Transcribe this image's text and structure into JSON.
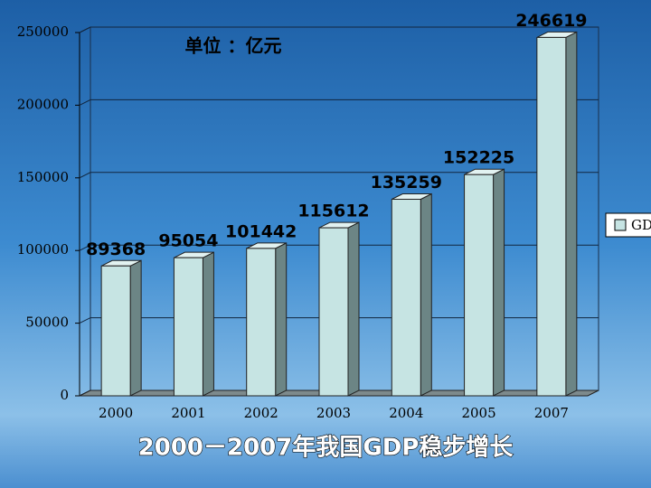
{
  "chart_data": {
    "type": "bar",
    "title": "2000－2007年我国GDP稳步增长",
    "annotation": "单位 ：亿元",
    "categories": [
      "2000",
      "2001",
      "2002",
      "2003",
      "2004",
      "2005",
      "2007"
    ],
    "series": [
      {
        "name": "GDP",
        "color": "#c6e4e3",
        "values": [
          89368,
          95054,
          101442,
          115612,
          135259,
          152225,
          246619
        ]
      }
    ],
    "ylim": [
      0,
      250000
    ],
    "yticks": [
      0,
      50000,
      100000,
      150000,
      200000,
      250000
    ],
    "grid": true,
    "legend": "right"
  }
}
